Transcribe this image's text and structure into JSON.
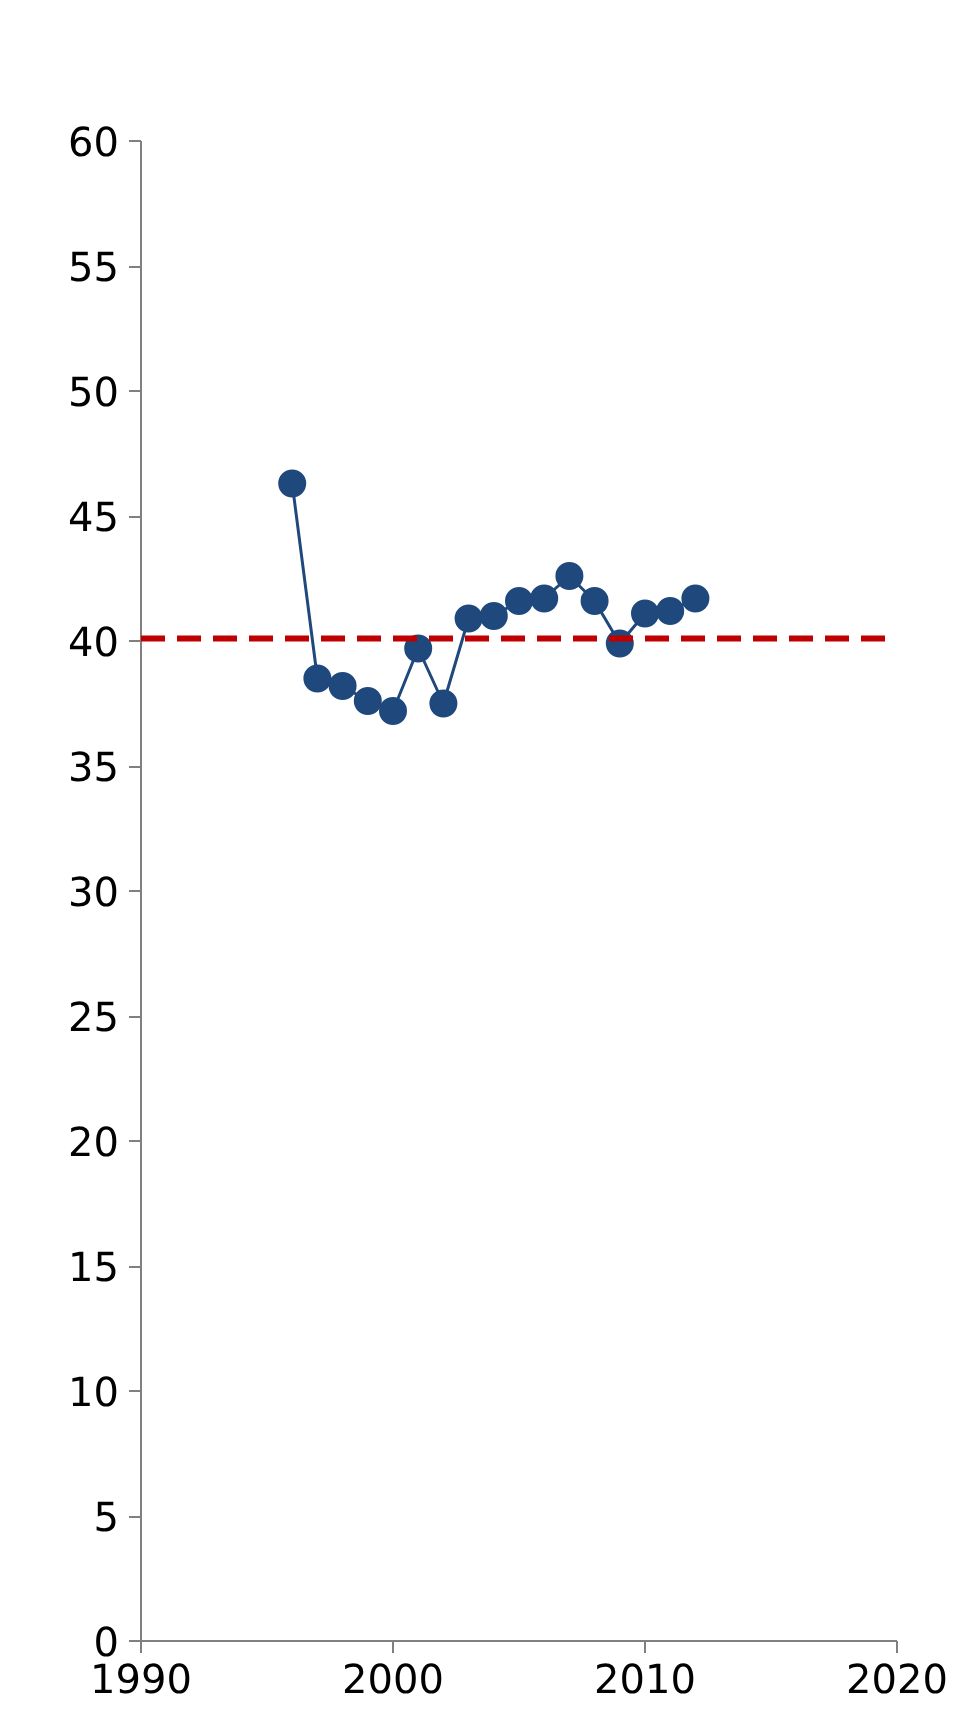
{
  "chart_data": {
    "type": "line",
    "x": [
      1996,
      1997,
      1998,
      1999,
      2000,
      2001,
      2002,
      2003,
      2004,
      2005,
      2006,
      2007,
      2008,
      2009,
      2010,
      2011,
      2012
    ],
    "series": [
      {
        "color": "#1f497d",
        "values": [
          46.3,
          38.5,
          38.2,
          37.6,
          37.2,
          39.7,
          37.5,
          40.9,
          41.0,
          41.6,
          41.7,
          42.6,
          41.6,
          39.9,
          41.1,
          41.2,
          41.7
        ]
      }
    ],
    "xlim": [
      1990,
      2020
    ],
    "xticks": [
      1990,
      2000,
      2010,
      2020
    ],
    "ylim": [
      0,
      60
    ],
    "yticks": [
      0,
      5,
      10,
      15,
      20,
      25,
      30,
      35,
      40,
      45,
      50,
      55,
      60
    ],
    "ref_lines": [
      {
        "axis": "y",
        "value": 40.1,
        "color": "#c00000",
        "line_style": "dashed"
      }
    ],
    "grid": false,
    "marker": "circle",
    "line_style": "solid"
  }
}
